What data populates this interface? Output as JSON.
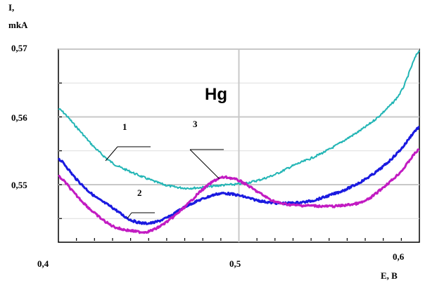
{
  "chart_data": {
    "type": "line",
    "title": "Hg",
    "xlabel": "E, B",
    "ylabel_line1": "I,",
    "ylabel_line2": "mkA",
    "xlim": [
      0.4,
      0.6
    ],
    "ylim": [
      0.5415,
      0.57
    ],
    "x_ticks": [
      0.4,
      0.5,
      0.6
    ],
    "x_tick_labels": [
      "0,4",
      "0,5",
      "0,6"
    ],
    "y_ticks": [
      0.55,
      0.56,
      0.57
    ],
    "y_tick_labels": [
      "0,55",
      "0,56",
      "0,57"
    ],
    "grid": true,
    "annotations": [
      "1",
      "2",
      "3"
    ],
    "series": [
      {
        "id": "1",
        "color": "#22b5b5",
        "x": [
          0.4,
          0.41,
          0.42,
          0.43,
          0.44,
          0.45,
          0.46,
          0.47,
          0.48,
          0.49,
          0.5,
          0.51,
          0.52,
          0.53,
          0.54,
          0.55,
          0.56,
          0.57,
          0.58,
          0.59,
          0.6
        ],
        "y": [
          0.5612,
          0.5585,
          0.5555,
          0.5532,
          0.5519,
          0.5508,
          0.5499,
          0.5495,
          0.5496,
          0.5499,
          0.5501,
          0.5506,
          0.5515,
          0.5528,
          0.5539,
          0.5552,
          0.5568,
          0.5585,
          0.5607,
          0.5638,
          0.5698
        ]
      },
      {
        "id": "2",
        "color": "#1a1ae0",
        "x": [
          0.4,
          0.41,
          0.42,
          0.43,
          0.44,
          0.45,
          0.46,
          0.47,
          0.48,
          0.49,
          0.5,
          0.51,
          0.52,
          0.53,
          0.54,
          0.55,
          0.56,
          0.57,
          0.58,
          0.59,
          0.6
        ],
        "y": [
          0.5538,
          0.5508,
          0.5483,
          0.5466,
          0.5448,
          0.5443,
          0.5451,
          0.5467,
          0.5479,
          0.5487,
          0.5484,
          0.5477,
          0.5473,
          0.5473,
          0.5476,
          0.5484,
          0.5494,
          0.5508,
          0.5527,
          0.5553,
          0.5585
        ]
      },
      {
        "id": "3",
        "color": "#c21bc2",
        "x": [
          0.4,
          0.41,
          0.42,
          0.43,
          0.44,
          0.45,
          0.46,
          0.47,
          0.48,
          0.49,
          0.5,
          0.51,
          0.52,
          0.53,
          0.54,
          0.55,
          0.56,
          0.57,
          0.58,
          0.59,
          0.6
        ],
        "y": [
          0.5512,
          0.5484,
          0.5458,
          0.5439,
          0.5432,
          0.5431,
          0.5445,
          0.5467,
          0.5493,
          0.551,
          0.5506,
          0.549,
          0.5475,
          0.547,
          0.5469,
          0.5468,
          0.547,
          0.5476,
          0.5496,
          0.552,
          0.5552
        ]
      }
    ]
  }
}
